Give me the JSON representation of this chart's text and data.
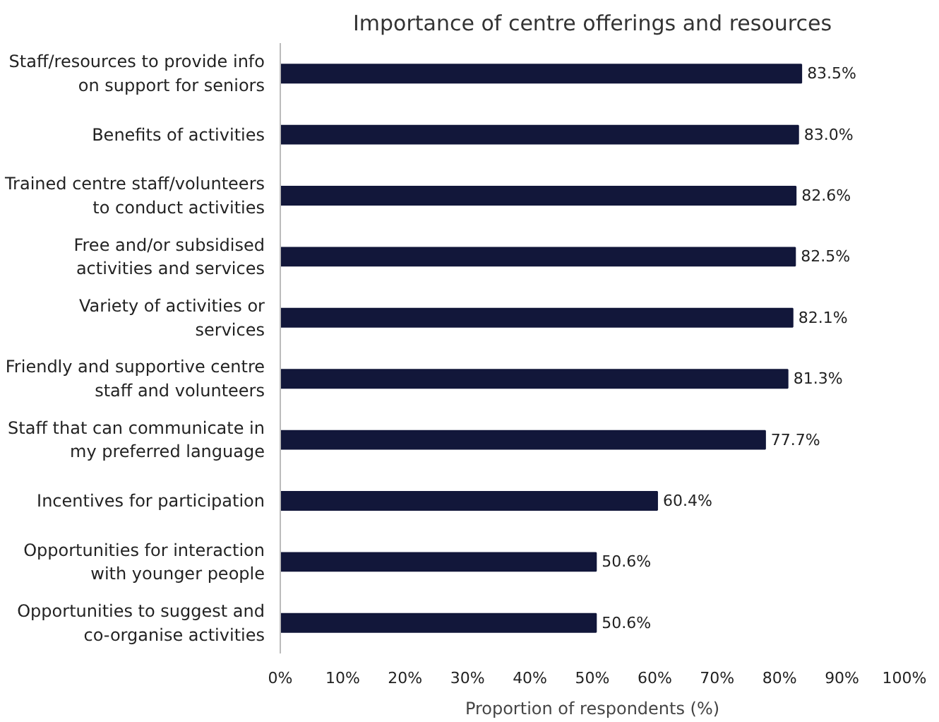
{
  "chart_data": {
    "type": "bar",
    "orientation": "horizontal",
    "title": "Importance of centre offerings and resources",
    "xlabel": "Proportion of respondents (%)",
    "categories": [
      "Staff/resources to provide info on support for seniors",
      "Benefits of activities",
      "Trained centre staff/volunteers to conduct activities",
      "Free and/or subsidised activities and services",
      "Variety of activities or services",
      "Friendly and supportive centre staff and volunteers",
      "Staff that can communicate in my preferred language",
      "Incentives for participation",
      "Opportunities for interaction with younger people",
      "Opportunities to suggest and co-organise activities"
    ],
    "values": [
      83.5,
      83.0,
      82.6,
      82.5,
      82.1,
      81.3,
      77.7,
      60.4,
      50.6,
      50.6
    ],
    "value_labels": [
      "83.5%",
      "83.0%",
      "82.6%",
      "82.5%",
      "82.1%",
      "81.3%",
      "77.7%",
      "60.4%",
      "50.6%",
      "50.6%"
    ],
    "color": "#12173a",
    "xlim": [
      0,
      100
    ],
    "xticks": [
      {
        "value": 0,
        "label": "0%"
      },
      {
        "value": 10,
        "label": "10%"
      },
      {
        "value": 20,
        "label": "20%"
      },
      {
        "value": 30,
        "label": "30%"
      },
      {
        "value": 40,
        "label": "40%"
      },
      {
        "value": 50,
        "label": "50%"
      },
      {
        "value": 60,
        "label": "60%"
      },
      {
        "value": 70,
        "label": "70%"
      },
      {
        "value": 80,
        "label": "80%"
      },
      {
        "value": 90,
        "label": "90%"
      },
      {
        "value": 100,
        "label": "100%"
      }
    ],
    "grid": false
  }
}
